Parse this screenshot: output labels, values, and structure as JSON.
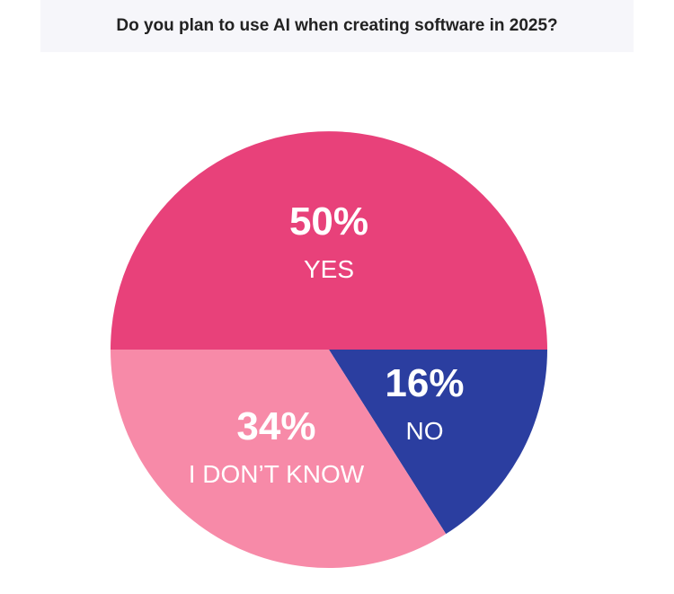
{
  "chart_data": {
    "type": "pie",
    "title": "Do you plan to use AI when creating software in 2025?",
    "categories": [
      "YES",
      "NO",
      "I DON’T KNOW"
    ],
    "values": [
      50,
      16,
      34
    ],
    "value_labels": [
      "50%",
      "16%",
      "34%"
    ],
    "colors": [
      "#e8417a",
      "#2b3ea0",
      "#f78aa8"
    ]
  }
}
